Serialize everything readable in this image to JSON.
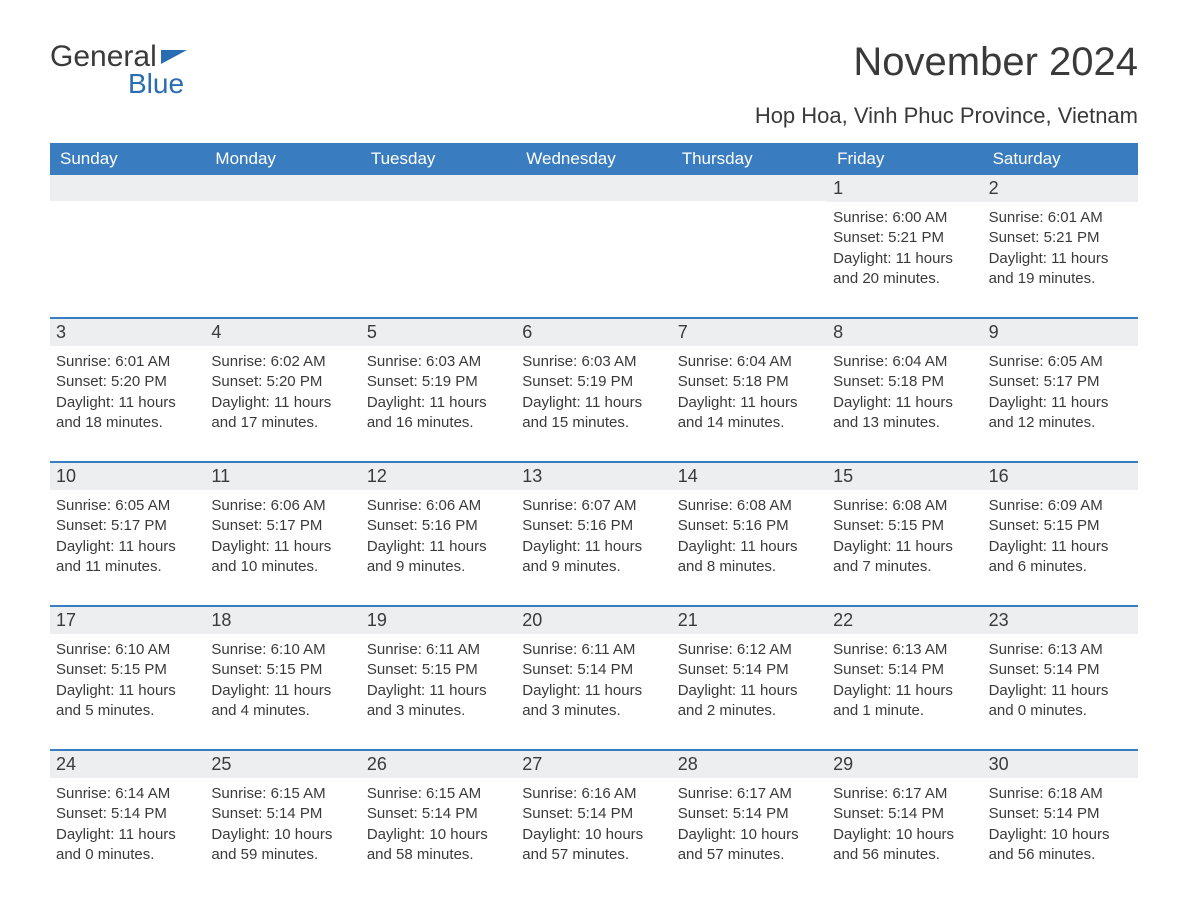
{
  "logo": {
    "text1": "General",
    "text2": "Blue"
  },
  "title": {
    "month": "November 2024",
    "location": "Hop Hoa, Vinh Phuc Province, Vietnam"
  },
  "colors": {
    "header_bg": "#3a7cc0",
    "header_text": "#ffffff",
    "row_divider": "#3a7cc0",
    "daynum_bg": "#eceeef",
    "text": "#3a3a3a",
    "logo_accent": "#2a6db3",
    "page_bg": "#ffffff"
  },
  "day_labels": [
    "Sunday",
    "Monday",
    "Tuesday",
    "Wednesday",
    "Thursday",
    "Friday",
    "Saturday"
  ],
  "weeks": [
    [
      null,
      null,
      null,
      null,
      null,
      {
        "n": "1",
        "sr": "Sunrise: 6:00 AM",
        "ss": "Sunset: 5:21 PM",
        "dl": "Daylight: 11 hours and 20 minutes."
      },
      {
        "n": "2",
        "sr": "Sunrise: 6:01 AM",
        "ss": "Sunset: 5:21 PM",
        "dl": "Daylight: 11 hours and 19 minutes."
      }
    ],
    [
      {
        "n": "3",
        "sr": "Sunrise: 6:01 AM",
        "ss": "Sunset: 5:20 PM",
        "dl": "Daylight: 11 hours and 18 minutes."
      },
      {
        "n": "4",
        "sr": "Sunrise: 6:02 AM",
        "ss": "Sunset: 5:20 PM",
        "dl": "Daylight: 11 hours and 17 minutes."
      },
      {
        "n": "5",
        "sr": "Sunrise: 6:03 AM",
        "ss": "Sunset: 5:19 PM",
        "dl": "Daylight: 11 hours and 16 minutes."
      },
      {
        "n": "6",
        "sr": "Sunrise: 6:03 AM",
        "ss": "Sunset: 5:19 PM",
        "dl": "Daylight: 11 hours and 15 minutes."
      },
      {
        "n": "7",
        "sr": "Sunrise: 6:04 AM",
        "ss": "Sunset: 5:18 PM",
        "dl": "Daylight: 11 hours and 14 minutes."
      },
      {
        "n": "8",
        "sr": "Sunrise: 6:04 AM",
        "ss": "Sunset: 5:18 PM",
        "dl": "Daylight: 11 hours and 13 minutes."
      },
      {
        "n": "9",
        "sr": "Sunrise: 6:05 AM",
        "ss": "Sunset: 5:17 PM",
        "dl": "Daylight: 11 hours and 12 minutes."
      }
    ],
    [
      {
        "n": "10",
        "sr": "Sunrise: 6:05 AM",
        "ss": "Sunset: 5:17 PM",
        "dl": "Daylight: 11 hours and 11 minutes."
      },
      {
        "n": "11",
        "sr": "Sunrise: 6:06 AM",
        "ss": "Sunset: 5:17 PM",
        "dl": "Daylight: 11 hours and 10 minutes."
      },
      {
        "n": "12",
        "sr": "Sunrise: 6:06 AM",
        "ss": "Sunset: 5:16 PM",
        "dl": "Daylight: 11 hours and 9 minutes."
      },
      {
        "n": "13",
        "sr": "Sunrise: 6:07 AM",
        "ss": "Sunset: 5:16 PM",
        "dl": "Daylight: 11 hours and 9 minutes."
      },
      {
        "n": "14",
        "sr": "Sunrise: 6:08 AM",
        "ss": "Sunset: 5:16 PM",
        "dl": "Daylight: 11 hours and 8 minutes."
      },
      {
        "n": "15",
        "sr": "Sunrise: 6:08 AM",
        "ss": "Sunset: 5:15 PM",
        "dl": "Daylight: 11 hours and 7 minutes."
      },
      {
        "n": "16",
        "sr": "Sunrise: 6:09 AM",
        "ss": "Sunset: 5:15 PM",
        "dl": "Daylight: 11 hours and 6 minutes."
      }
    ],
    [
      {
        "n": "17",
        "sr": "Sunrise: 6:10 AM",
        "ss": "Sunset: 5:15 PM",
        "dl": "Daylight: 11 hours and 5 minutes."
      },
      {
        "n": "18",
        "sr": "Sunrise: 6:10 AM",
        "ss": "Sunset: 5:15 PM",
        "dl": "Daylight: 11 hours and 4 minutes."
      },
      {
        "n": "19",
        "sr": "Sunrise: 6:11 AM",
        "ss": "Sunset: 5:15 PM",
        "dl": "Daylight: 11 hours and 3 minutes."
      },
      {
        "n": "20",
        "sr": "Sunrise: 6:11 AM",
        "ss": "Sunset: 5:14 PM",
        "dl": "Daylight: 11 hours and 3 minutes."
      },
      {
        "n": "21",
        "sr": "Sunrise: 6:12 AM",
        "ss": "Sunset: 5:14 PM",
        "dl": "Daylight: 11 hours and 2 minutes."
      },
      {
        "n": "22",
        "sr": "Sunrise: 6:13 AM",
        "ss": "Sunset: 5:14 PM",
        "dl": "Daylight: 11 hours and 1 minute."
      },
      {
        "n": "23",
        "sr": "Sunrise: 6:13 AM",
        "ss": "Sunset: 5:14 PM",
        "dl": "Daylight: 11 hours and 0 minutes."
      }
    ],
    [
      {
        "n": "24",
        "sr": "Sunrise: 6:14 AM",
        "ss": "Sunset: 5:14 PM",
        "dl": "Daylight: 11 hours and 0 minutes."
      },
      {
        "n": "25",
        "sr": "Sunrise: 6:15 AM",
        "ss": "Sunset: 5:14 PM",
        "dl": "Daylight: 10 hours and 59 minutes."
      },
      {
        "n": "26",
        "sr": "Sunrise: 6:15 AM",
        "ss": "Sunset: 5:14 PM",
        "dl": "Daylight: 10 hours and 58 minutes."
      },
      {
        "n": "27",
        "sr": "Sunrise: 6:16 AM",
        "ss": "Sunset: 5:14 PM",
        "dl": "Daylight: 10 hours and 57 minutes."
      },
      {
        "n": "28",
        "sr": "Sunrise: 6:17 AM",
        "ss": "Sunset: 5:14 PM",
        "dl": "Daylight: 10 hours and 57 minutes."
      },
      {
        "n": "29",
        "sr": "Sunrise: 6:17 AM",
        "ss": "Sunset: 5:14 PM",
        "dl": "Daylight: 10 hours and 56 minutes."
      },
      {
        "n": "30",
        "sr": "Sunrise: 6:18 AM",
        "ss": "Sunset: 5:14 PM",
        "dl": "Daylight: 10 hours and 56 minutes."
      }
    ]
  ]
}
